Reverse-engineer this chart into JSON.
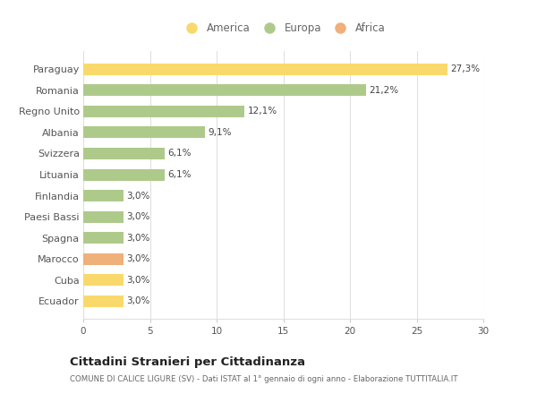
{
  "countries": [
    "Ecuador",
    "Cuba",
    "Marocco",
    "Spagna",
    "Paesi Bassi",
    "Finlandia",
    "Lituania",
    "Svizzera",
    "Albania",
    "Regno Unito",
    "Romania",
    "Paraguay"
  ],
  "values": [
    3.0,
    3.0,
    3.0,
    3.0,
    3.0,
    3.0,
    6.1,
    6.1,
    9.1,
    12.1,
    21.2,
    27.3
  ],
  "continents": [
    "America",
    "America",
    "Africa",
    "Europa",
    "Europa",
    "Europa",
    "Europa",
    "Europa",
    "Europa",
    "Europa",
    "Europa",
    "America"
  ],
  "colors": {
    "America": "#F9D96B",
    "Europa": "#AECA8B",
    "Africa": "#F0B07A"
  },
  "labels": [
    "3,0%",
    "3,0%",
    "3,0%",
    "3,0%",
    "3,0%",
    "3,0%",
    "6,1%",
    "6,1%",
    "9,1%",
    "12,1%",
    "21,2%",
    "27,3%"
  ],
  "title": "Cittadini Stranieri per Cittadinanza",
  "subtitle": "COMUNE DI CALICE LIGURE (SV) - Dati ISTAT al 1° gennaio di ogni anno - Elaborazione TUTTITALIA.IT",
  "xlim": [
    0,
    30
  ],
  "xticks": [
    0,
    5,
    10,
    15,
    20,
    25,
    30
  ],
  "legend_order": [
    "America",
    "Europa",
    "Africa"
  ],
  "background_color": "#ffffff",
  "grid_color": "#e0e0e0"
}
